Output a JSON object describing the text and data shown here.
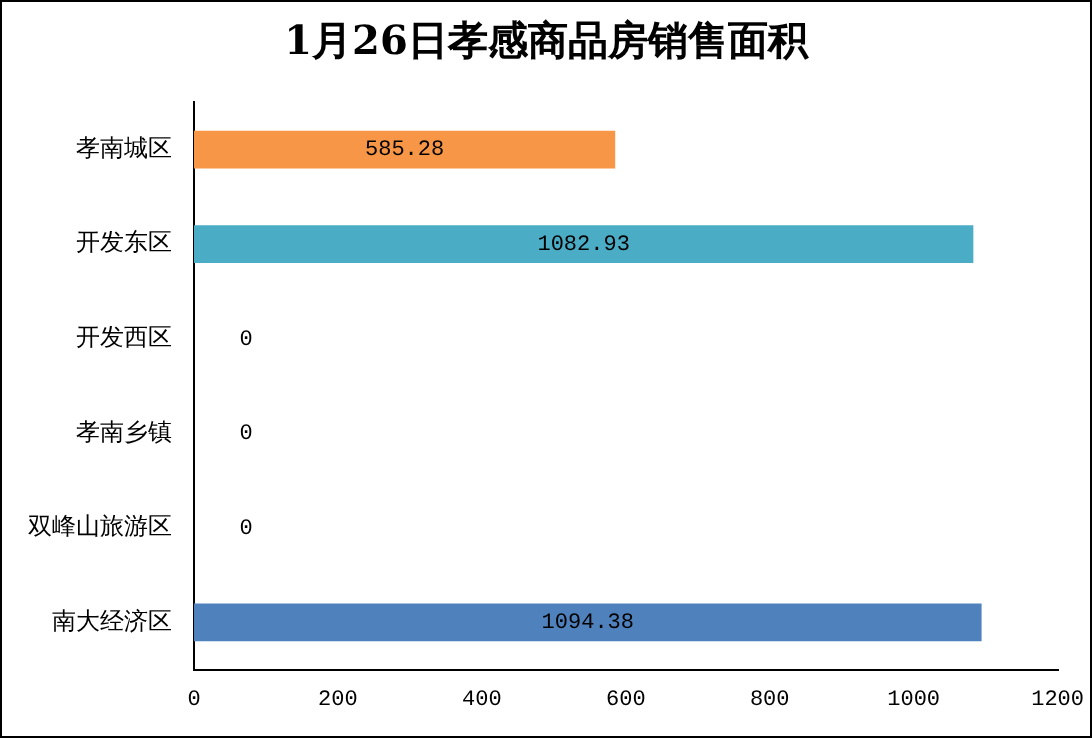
{
  "chart_data": {
    "type": "bar",
    "orientation": "horizontal",
    "title": "1月26日孝感商品房销售面积",
    "categories": [
      "孝南城区",
      "开发东区",
      "开发西区",
      "孝南乡镇",
      "双峰山旅游区",
      "南大经济区"
    ],
    "values": [
      585.28,
      1082.93,
      0,
      0,
      0,
      1094.38
    ],
    "colors": [
      "#f79646",
      "#4bacc6",
      "#9bbb59",
      "#8064a2",
      "#c0504d",
      "#4f81bd"
    ],
    "xlim": [
      0,
      1200
    ],
    "xticks": [
      0,
      200,
      400,
      600,
      800,
      1000,
      1200
    ],
    "data_labels": true,
    "grid": false,
    "legend": false
  }
}
